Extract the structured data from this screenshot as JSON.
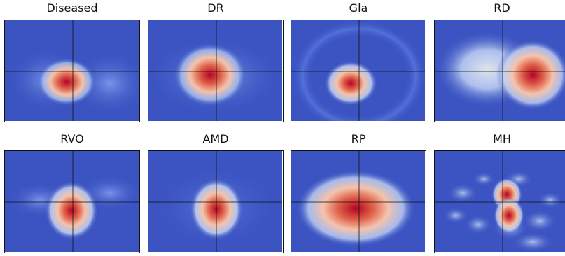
{
  "colors": {
    "background_blue": "#3b54c2",
    "mid_blue": "#6f8ee8",
    "pale": "#dde4f3",
    "warm": "#f2a98c",
    "red": "#b40426"
  },
  "panels": [
    {
      "title": "Diseased"
    },
    {
      "title": "DR"
    },
    {
      "title": "Gla"
    },
    {
      "title": "RD"
    },
    {
      "title": "RVO"
    },
    {
      "title": "AMD"
    },
    {
      "title": "RP"
    },
    {
      "title": "MH"
    }
  ]
}
